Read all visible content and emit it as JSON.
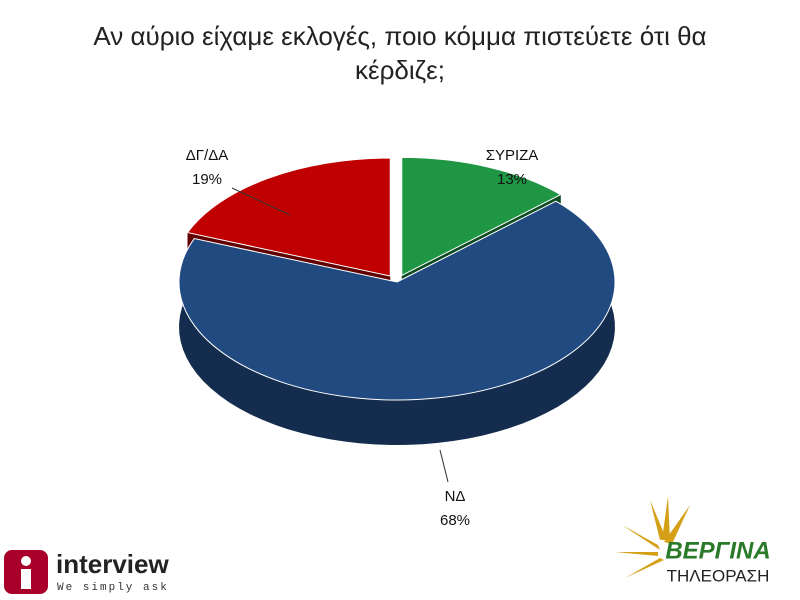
{
  "chart_data": {
    "type": "pie",
    "title": "Αν αύριο είχαμε εκλογές, ποιο κόμμα πιστεύετε ότι θα κέρδιζε;",
    "categories": [
      "ΣΥΡΙΖΑ",
      "ΝΔ",
      "ΔΓ/ΔΑ"
    ],
    "values": [
      13,
      68,
      19
    ],
    "value_labels": [
      "13%",
      "68%",
      "19%"
    ],
    "colors": [
      "#1e9643",
      "#214a80",
      "#c00000"
    ]
  },
  "logos": {
    "interview": "interview",
    "interview_tagline": "We simply ask",
    "vergina": "ΒΕΡΓΙΝΑ",
    "vergina_sub": "ΤΗΛΕΟΡΑΣΗ"
  }
}
